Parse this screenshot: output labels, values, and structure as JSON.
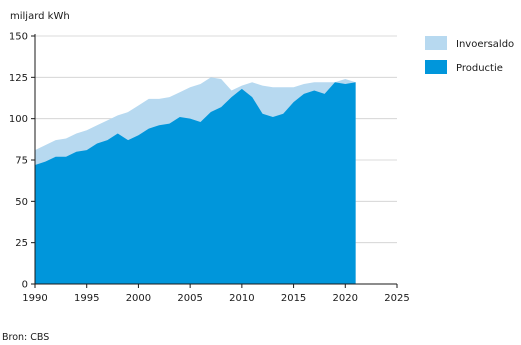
{
  "chart_data": {
    "type": "area",
    "ylabel": "miljard kWh",
    "xlim": [
      1990,
      2025
    ],
    "ylim": [
      0,
      150
    ],
    "xticks": [
      1990,
      1995,
      2000,
      2005,
      2010,
      2015,
      2020,
      2025
    ],
    "yticks": [
      0,
      25,
      50,
      75,
      100,
      125,
      150
    ],
    "grid": "horizontal",
    "stacked": true,
    "legend_position": "right",
    "x": [
      1990,
      1991,
      1992,
      1993,
      1994,
      1995,
      1996,
      1997,
      1998,
      1999,
      2000,
      2001,
      2002,
      2003,
      2004,
      2005,
      2006,
      2007,
      2008,
      2009,
      2010,
      2011,
      2012,
      2013,
      2014,
      2015,
      2016,
      2017,
      2018,
      2019,
      2020,
      2021
    ],
    "series": [
      {
        "name": "Productie",
        "color": "#0096db",
        "values": [
          72,
          74,
          77,
          77,
          80,
          81,
          85,
          87,
          91,
          87,
          90,
          94,
          96,
          97,
          101,
          100,
          98,
          104,
          107,
          113,
          118,
          113,
          103,
          101,
          103,
          110,
          115,
          117,
          115,
          122,
          121,
          122
        ]
      },
      {
        "name": "Invoersaldo",
        "color": "#b7d9f0",
        "values": [
          9,
          10,
          10,
          11,
          11,
          12,
          11,
          12,
          11,
          17,
          18,
          18,
          16,
          16,
          15,
          19,
          23,
          21,
          17,
          4,
          2,
          9,
          17,
          18,
          16,
          9,
          6,
          5,
          7,
          0,
          3,
          0
        ]
      }
    ]
  },
  "source": "Bron: CBS"
}
